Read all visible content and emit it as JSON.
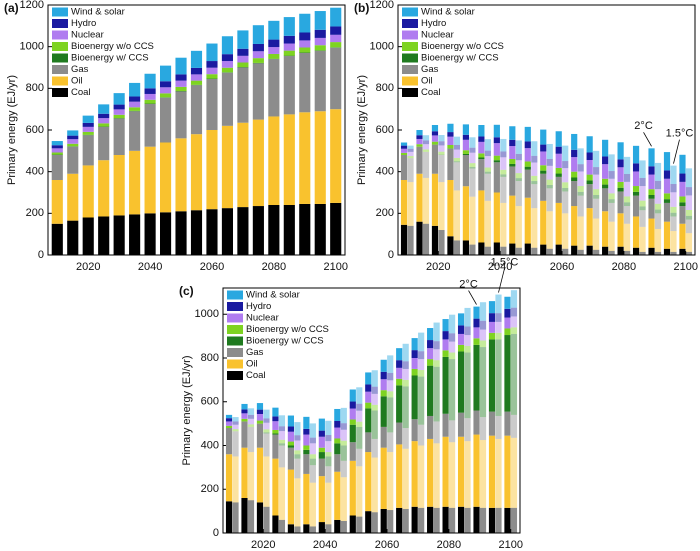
{
  "chart_data": [
    {
      "type": "stacked_bar",
      "title": "(a)",
      "y_label": "Primary energy (EJ/yr)",
      "x": [
        2010,
        2015,
        2020,
        2025,
        2030,
        2035,
        2040,
        2045,
        2050,
        2055,
        2060,
        2065,
        2070,
        2075,
        2080,
        2085,
        2090,
        2095,
        2100
      ],
      "xlim": [
        2007,
        2103
      ],
      "xticks": [
        2020,
        2040,
        2060,
        2080,
        2100
      ],
      "ylim": [
        0,
        1200
      ],
      "yticks": [
        0,
        200,
        400,
        600,
        800,
        1000,
        1200
      ],
      "legend": "upper left",
      "series": [
        {
          "name": "Coal",
          "color": "#000000",
          "values": [
            150,
            165,
            180,
            185,
            190,
            195,
            200,
            205,
            210,
            215,
            220,
            225,
            230,
            235,
            240,
            240,
            245,
            245,
            250
          ]
        },
        {
          "name": "Oil",
          "color": "#f9c22e",
          "values": [
            210,
            225,
            250,
            270,
            290,
            305,
            320,
            335,
            350,
            365,
            380,
            395,
            405,
            415,
            425,
            435,
            440,
            445,
            450
          ]
        },
        {
          "name": "Gas",
          "color": "#8c8c8c",
          "values": [
            120,
            130,
            145,
            160,
            175,
            190,
            205,
            215,
            225,
            235,
            245,
            255,
            265,
            270,
            275,
            280,
            285,
            290,
            295
          ]
        },
        {
          "name": "Bioenergy w/ CCS",
          "color": "#1f7a1f",
          "values": [
            2,
            2,
            2,
            2,
            2,
            2,
            2,
            2,
            2,
            2,
            2,
            2,
            2,
            2,
            2,
            2,
            2,
            2,
            2
          ]
        },
        {
          "name": "Bioenergy w/o CCS",
          "color": "#7ed321",
          "values": [
            10,
            12,
            14,
            15,
            16,
            17,
            18,
            19,
            20,
            20,
            21,
            22,
            22,
            23,
            23,
            24,
            24,
            25,
            25
          ]
        },
        {
          "name": "Nuclear",
          "color": "#b07cf0",
          "values": [
            20,
            22,
            24,
            25,
            26,
            27,
            28,
            29,
            30,
            30,
            31,
            32,
            32,
            33,
            33,
            34,
            34,
            35,
            35
          ]
        },
        {
          "name": "Hydro",
          "color": "#1a1aa0",
          "values": [
            15,
            17,
            19,
            21,
            23,
            25,
            27,
            29,
            30,
            31,
            32,
            33,
            34,
            35,
            36,
            37,
            38,
            39,
            40
          ]
        },
        {
          "name": "Wind & solar",
          "color": "#29a8e0",
          "values": [
            20,
            25,
            35,
            45,
            55,
            65,
            70,
            75,
            80,
            82,
            84,
            86,
            88,
            90,
            90,
            90,
            90,
            90,
            90
          ]
        }
      ]
    },
    {
      "type": "paired_stacked_bar",
      "title": "(b)",
      "y_label": "Primary energy (EJ/yr)",
      "x": [
        2010,
        2015,
        2020,
        2025,
        2030,
        2035,
        2040,
        2045,
        2050,
        2055,
        2060,
        2065,
        2070,
        2075,
        2080,
        2085,
        2090,
        2095,
        2100
      ],
      "xlim": [
        2007,
        2103
      ],
      "xticks": [
        2020,
        2040,
        2060,
        2080,
        2100
      ],
      "ylim": [
        0,
        1200
      ],
      "yticks": [
        0,
        200,
        400,
        600,
        800,
        1000,
        1200
      ],
      "legend": "upper left",
      "series": [
        {
          "name": "Coal",
          "color": "#000000"
        },
        {
          "name": "Oil",
          "color": "#f9c22e"
        },
        {
          "name": "Gas",
          "color": "#8c8c8c"
        },
        {
          "name": "Bioenergy w/ CCS",
          "color": "#1f7a1f"
        },
        {
          "name": "Bioenergy w/o CCS",
          "color": "#7ed321"
        },
        {
          "name": "Nuclear",
          "color": "#b07cf0"
        },
        {
          "name": "Hydro",
          "color": "#1a1aa0"
        },
        {
          "name": "Wind & solar",
          "color": "#29a8e0"
        }
      ],
      "scenarios": [
        {
          "name": "2°C",
          "opacity": 1,
          "values": [
            [
              145,
              160,
              140,
              90,
              70,
              60,
              60,
              55,
              55,
              50,
              50,
              45,
              45,
              40,
              40,
              35,
              35,
              30,
              30
            ],
            [
              215,
              230,
              250,
              270,
              260,
              250,
              240,
              230,
              220,
              210,
              200,
              190,
              180,
              170,
              160,
              150,
              140,
              130,
              120
            ],
            [
              120,
              130,
              140,
              150,
              150,
              150,
              145,
              140,
              135,
              130,
              125,
              120,
              115,
              110,
              105,
              100,
              95,
              90,
              85
            ],
            [
              0,
              0,
              0,
              2,
              5,
              8,
              10,
              12,
              14,
              15,
              16,
              17,
              18,
              18,
              18,
              18,
              18,
              18,
              18
            ],
            [
              10,
              12,
              14,
              16,
              18,
              20,
              22,
              24,
              25,
              26,
              27,
              28,
              28,
              28,
              28,
              28,
              28,
              28,
              28
            ],
            [
              20,
              25,
              30,
              40,
              50,
              55,
              60,
              62,
              64,
              66,
              68,
              70,
              70,
              70,
              70,
              70,
              70,
              70,
              70
            ],
            [
              15,
              18,
              20,
              22,
              24,
              26,
              28,
              30,
              32,
              33,
              34,
              35,
              36,
              37,
              38,
              39,
              40,
              40,
              40
            ],
            [
              15,
              25,
              30,
              40,
              50,
              55,
              60,
              65,
              70,
              72,
              74,
              76,
              78,
              80,
              82,
              84,
              86,
              88,
              90
            ]
          ]
        },
        {
          "name": "1.5°C",
          "opacity": 0.45,
          "values": [
            [
              140,
              150,
              120,
              70,
              50,
              40,
              40,
              35,
              35,
              30,
              30,
              25,
              25,
              20,
              20,
              15,
              15,
              15,
              15
            ],
            [
              210,
              220,
              230,
              240,
              230,
              220,
              210,
              200,
              190,
              180,
              170,
              160,
              150,
              140,
              130,
              120,
              110,
              100,
              90
            ],
            [
              115,
              125,
              130,
              135,
              135,
              130,
              125,
              120,
              115,
              110,
              105,
              100,
              95,
              90,
              85,
              80,
              75,
              70,
              65
            ],
            [
              0,
              0,
              2,
              5,
              8,
              10,
              12,
              14,
              15,
              16,
              17,
              18,
              18,
              18,
              18,
              18,
              18,
              18,
              18
            ],
            [
              10,
              12,
              14,
              16,
              18,
              20,
              22,
              24,
              25,
              26,
              27,
              28,
              28,
              28,
              28,
              28,
              28,
              28,
              28
            ],
            [
              20,
              25,
              30,
              40,
              50,
              55,
              60,
              62,
              64,
              66,
              68,
              70,
              70,
              70,
              70,
              70,
              70,
              70,
              70
            ],
            [
              15,
              18,
              20,
              22,
              24,
              26,
              28,
              30,
              32,
              33,
              34,
              35,
              36,
              37,
              38,
              39,
              40,
              40,
              40
            ],
            [
              15,
              25,
              30,
              40,
              50,
              55,
              60,
              65,
              70,
              72,
              74,
              76,
              78,
              80,
              82,
              84,
              86,
              88,
              90
            ]
          ]
        }
      ]
    },
    {
      "type": "paired_stacked_bar",
      "title": "(c)",
      "y_label": "Primary energy (EJ/yr)",
      "x": [
        2010,
        2015,
        2020,
        2025,
        2030,
        2035,
        2040,
        2045,
        2050,
        2055,
        2060,
        2065,
        2070,
        2075,
        2080,
        2085,
        2090,
        2095,
        2100
      ],
      "xlim": [
        2007,
        2103
      ],
      "xticks": [
        2020,
        2040,
        2060,
        2080,
        2100
      ],
      "ylim": [
        0,
        1120
      ],
      "yticks": [
        0,
        200,
        400,
        600,
        800,
        1000
      ],
      "legend": "upper left",
      "series": [
        {
          "name": "Coal",
          "color": "#000000"
        },
        {
          "name": "Oil",
          "color": "#f9c22e"
        },
        {
          "name": "Gas",
          "color": "#8c8c8c"
        },
        {
          "name": "Bioenergy w/ CCS",
          "color": "#1f7a1f"
        },
        {
          "name": "Bioenergy w/o CCS",
          "color": "#7ed321"
        },
        {
          "name": "Nuclear",
          "color": "#b07cf0"
        },
        {
          "name": "Hydro",
          "color": "#1a1aa0"
        },
        {
          "name": "Wind & solar",
          "color": "#29a8e0"
        }
      ],
      "scenarios": [
        {
          "name": "2°C",
          "opacity": 1,
          "values": [
            [
              145,
              160,
              140,
              80,
              40,
              40,
              50,
              60,
              80,
              100,
              110,
              115,
              120,
              120,
              120,
              120,
              120,
              115,
              115
            ],
            [
              215,
              230,
              250,
              260,
              250,
              230,
              210,
              220,
              250,
              270,
              280,
              290,
              300,
              310,
              320,
              320,
              330,
              330,
              330
            ],
            [
              120,
              120,
              110,
              110,
              100,
              90,
              80,
              80,
              85,
              90,
              95,
              100,
              100,
              105,
              105,
              110,
              110,
              110,
              110
            ],
            [
              0,
              0,
              0,
              5,
              10,
              20,
              30,
              50,
              80,
              110,
              140,
              170,
              200,
              230,
              260,
              280,
              300,
              330,
              350
            ],
            [
              10,
              12,
              14,
              16,
              18,
              20,
              20,
              22,
              24,
              26,
              28,
              30,
              30,
              30,
              30,
              30,
              30,
              30,
              30
            ],
            [
              20,
              25,
              30,
              40,
              45,
              50,
              50,
              50,
              50,
              50,
              50,
              50,
              50,
              50,
              50,
              50,
              50,
              50,
              50
            ],
            [
              15,
              18,
              20,
              22,
              24,
              26,
              28,
              30,
              32,
              33,
              34,
              35,
              36,
              37,
              38,
              39,
              40,
              40,
              40
            ],
            [
              15,
              25,
              30,
              40,
              50,
              55,
              55,
              55,
              55,
              55,
              55,
              55,
              55,
              55,
              55,
              55,
              55,
              55,
              55
            ]
          ]
        },
        {
          "name": "1.5°C",
          "opacity": 0.45,
          "values": [
            [
              140,
              150,
              120,
              60,
              30,
              30,
              40,
              55,
              75,
              95,
              105,
              110,
              115,
              115,
              115,
              115,
              115,
              115,
              115
            ],
            [
              210,
              220,
              230,
              240,
              220,
              200,
              190,
              200,
              230,
              250,
              265,
              275,
              285,
              295,
              300,
              305,
              310,
              315,
              320
            ],
            [
              115,
              115,
              105,
              100,
              90,
              80,
              75,
              75,
              80,
              85,
              90,
              95,
              95,
              100,
              100,
              105,
              105,
              105,
              105
            ],
            [
              0,
              0,
              5,
              10,
              20,
              30,
              45,
              70,
              100,
              130,
              160,
              190,
              220,
              250,
              280,
              300,
              320,
              350,
              370
            ],
            [
              10,
              12,
              14,
              16,
              18,
              20,
              20,
              22,
              24,
              26,
              28,
              30,
              30,
              30,
              30,
              30,
              30,
              30,
              30
            ],
            [
              20,
              25,
              30,
              40,
              45,
              50,
              50,
              50,
              50,
              50,
              50,
              50,
              50,
              50,
              50,
              50,
              50,
              50,
              50
            ],
            [
              15,
              18,
              20,
              22,
              24,
              26,
              28,
              30,
              32,
              33,
              34,
              35,
              36,
              37,
              38,
              39,
              40,
              40,
              40
            ],
            [
              20,
              30,
              40,
              50,
              60,
              65,
              65,
              70,
              75,
              75,
              80,
              80,
              85,
              85,
              85,
              85,
              85,
              85,
              80
            ]
          ]
        }
      ]
    }
  ]
}
